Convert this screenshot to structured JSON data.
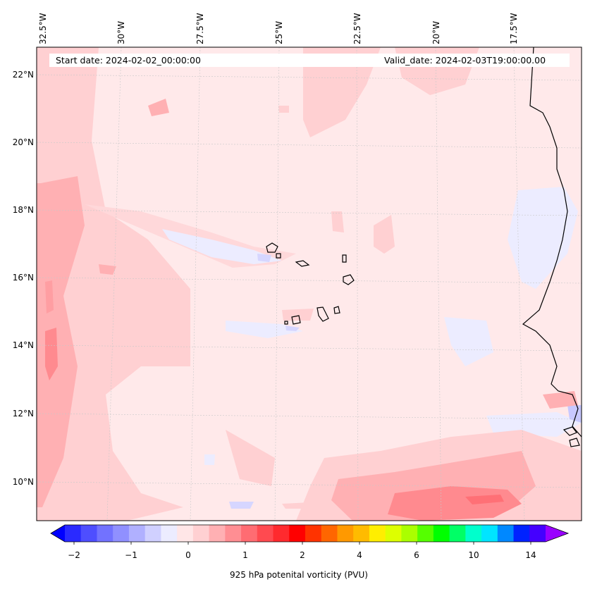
{
  "map": {
    "start_label": "Start date: 2024-02-02_00:00:00",
    "valid_label": "Valid_date: 2024-02-03T19:00:00.00",
    "lon_ticks": [
      "32.5°W",
      "30°W",
      "27.5°W",
      "25°W",
      "22.5°W",
      "20°W",
      "17.5°W"
    ],
    "lat_ticks": [
      "22°N",
      "20°N",
      "18°N",
      "16°N",
      "14°N",
      "12°N",
      "10°N"
    ],
    "field_name": "925 hPa potenital vorticity (PVU)",
    "colorbar_ticks": [
      "−2",
      "−1",
      "0",
      "1",
      "2",
      "4",
      "6",
      "10",
      "14"
    ],
    "colors": {
      "background": "#ffe9ea",
      "light_pink": "#ffd0d2",
      "mid_pink": "#ffb0b3",
      "deep_pink": "#ff8a8f",
      "light_blue": "#ececff",
      "coast": "#000000"
    }
  }
}
